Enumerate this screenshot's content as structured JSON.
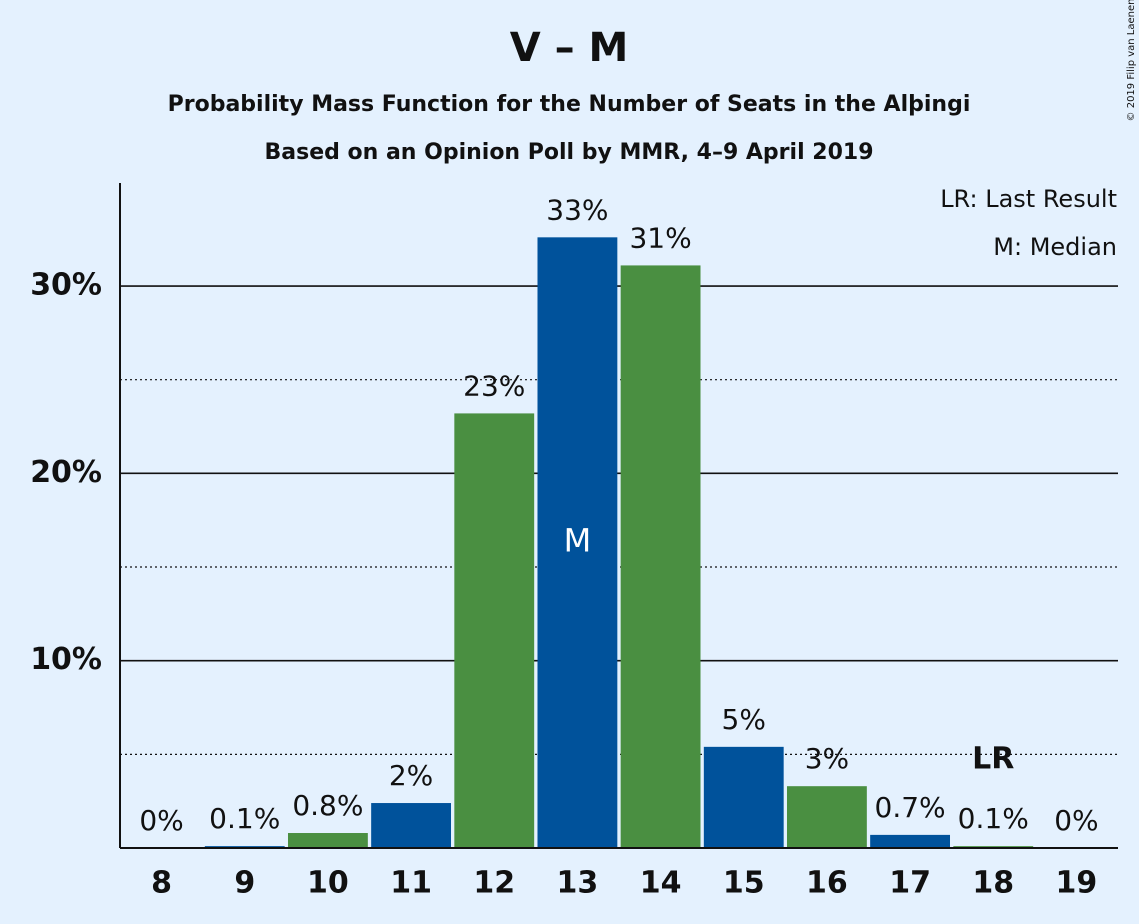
{
  "chart_data": {
    "type": "bar",
    "title": "V – M",
    "subtitle": "Probability Mass Function for the Number of Seats in the Alþingi",
    "subtitle2": "Based on an Opinion Poll by MMR, 4–9 April 2019",
    "copyright": "© 2019 Filip van Laenen",
    "categories": [
      "8",
      "9",
      "10",
      "11",
      "12",
      "13",
      "14",
      "15",
      "16",
      "17",
      "18",
      "19"
    ],
    "values": [
      0,
      0.1,
      0.8,
      2.4,
      23.2,
      32.6,
      31.1,
      5.4,
      3.3,
      0.7,
      0.1,
      0
    ],
    "value_labels": [
      "0%",
      "0.1%",
      "0.8%",
      "2%",
      "23%",
      "33%",
      "31%",
      "5%",
      "3%",
      "0.7%",
      "0.1%",
      "0%"
    ],
    "colors": [
      "#4a8f41",
      "#00529b",
      "#4a8f41",
      "#00529b",
      "#4a8f41",
      "#00529b",
      "#4a8f41",
      "#00529b",
      "#4a8f41",
      "#00529b",
      "#4a8f41",
      "#00529b"
    ],
    "ylim": [
      0,
      35.5
    ],
    "yticks": [
      {
        "value": 10,
        "label": "10%"
      },
      {
        "value": 20,
        "label": "20%"
      },
      {
        "value": 30,
        "label": "30%"
      }
    ],
    "minor_gridlines": [
      5,
      15,
      25
    ],
    "grid": true,
    "median": {
      "index": 5,
      "label": "M"
    },
    "last_result": {
      "index": 10,
      "label": "LR"
    },
    "legend": [
      "LR: Last Result",
      "M: Median"
    ]
  }
}
